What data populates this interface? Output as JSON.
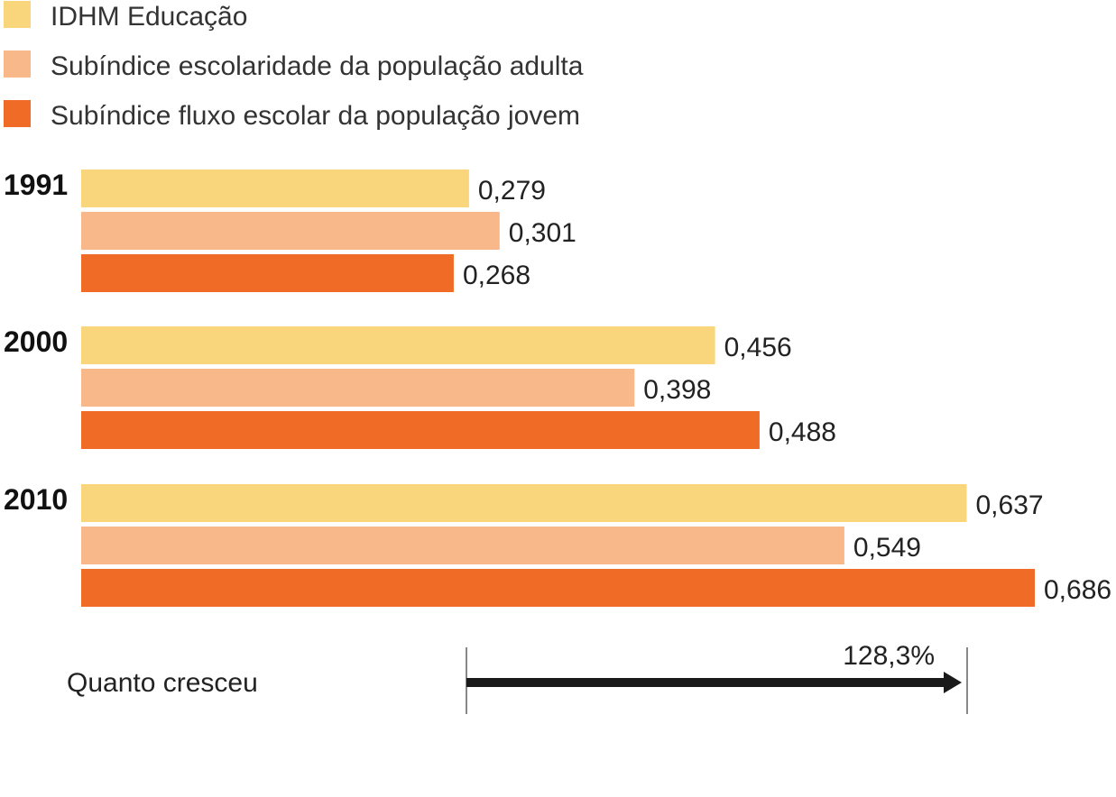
{
  "chart_data": {
    "type": "bar",
    "orientation": "horizontal",
    "categories": [
      "1991",
      "2000",
      "2010"
    ],
    "series": [
      {
        "name": "IDHM Educação",
        "color": "#f9d67c",
        "values": [
          0.279,
          0.456,
          0.637
        ],
        "labels": [
          "0,279",
          "0,456",
          "0,637"
        ]
      },
      {
        "name": "Subíndice escolaridade da população adulta",
        "color": "#f8b88a",
        "values": [
          0.301,
          0.398,
          0.549
        ],
        "labels": [
          "0,301",
          "0,398",
          "0,549"
        ]
      },
      {
        "name": "Subíndice fluxo escolar da população jovem",
        "color": "#f06c26",
        "values": [
          0.268,
          0.488,
          0.686
        ],
        "labels": [
          "0,268",
          "0,488",
          "0,686"
        ]
      }
    ],
    "xlim": [
      0,
      0.686
    ],
    "legend_position": "top-left",
    "grid": false
  },
  "growth": {
    "label": "Quanto cresceu",
    "value_text": "128,3%",
    "arrow_color": "#1a1a1a"
  }
}
